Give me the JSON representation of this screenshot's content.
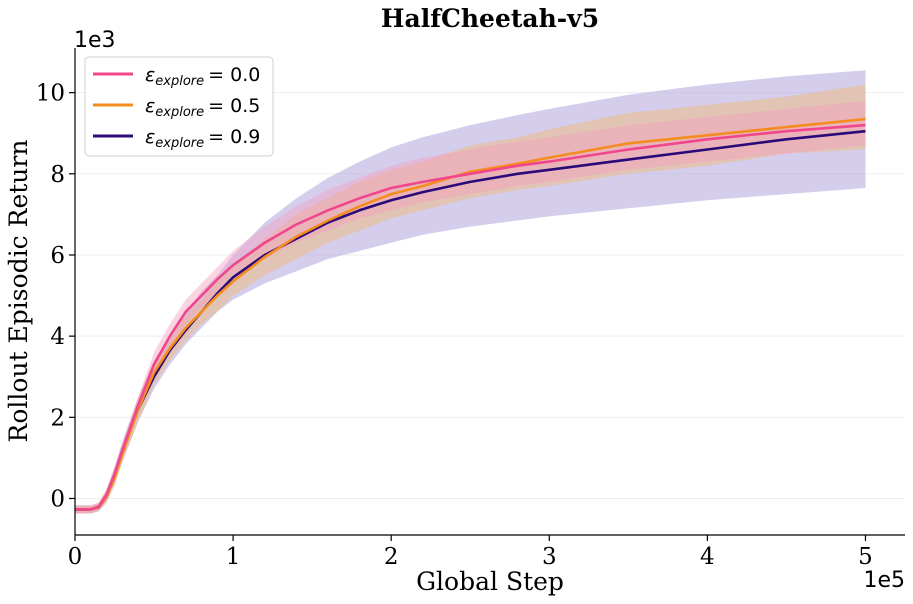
{
  "chart_data": {
    "type": "line",
    "title": "HalfCheetah-v5",
    "xlabel": "Global Step",
    "ylabel": "Rollout Episodic Return",
    "x_offset_label": "1e5",
    "y_offset_label": "1e3",
    "xlim": [
      0,
      5.25
    ],
    "ylim": [
      -0.9,
      11.1
    ],
    "xticks": [
      0,
      1,
      2,
      3,
      4,
      5
    ],
    "yticks": [
      0,
      2,
      4,
      6,
      8,
      10
    ],
    "x_tick_labels": [
      "0",
      "1",
      "2",
      "3",
      "4",
      "5"
    ],
    "y_tick_labels": [
      "0",
      "2",
      "4",
      "6",
      "8",
      "10"
    ],
    "grid": true,
    "legend_position": "top-left",
    "x": [
      0,
      0.1,
      0.15,
      0.2,
      0.25,
      0.3,
      0.4,
      0.5,
      0.6,
      0.7,
      0.8,
      0.9,
      1.0,
      1.2,
      1.4,
      1.6,
      1.8,
      2.0,
      2.2,
      2.5,
      2.8,
      3.0,
      3.5,
      4.0,
      4.5,
      5.0
    ],
    "series": [
      {
        "name": "explore = 0.0",
        "legend_label": "= 0.0",
        "color": "#f0468c",
        "band_color": "#f4a0c0",
        "values": [
          -0.27,
          -0.27,
          -0.2,
          0.1,
          0.6,
          1.2,
          2.3,
          3.3,
          4.0,
          4.6,
          5.0,
          5.4,
          5.75,
          6.3,
          6.75,
          7.1,
          7.4,
          7.65,
          7.8,
          8.0,
          8.2,
          8.3,
          8.6,
          8.85,
          9.05,
          9.2
        ],
        "lower": [
          -0.37,
          -0.37,
          -0.3,
          -0.05,
          0.4,
          1.0,
          2.1,
          3.0,
          3.7,
          4.3,
          4.7,
          5.1,
          5.4,
          5.9,
          6.3,
          6.6,
          6.9,
          7.1,
          7.3,
          7.5,
          7.7,
          7.8,
          8.1,
          8.3,
          8.5,
          8.7
        ],
        "upper": [
          -0.17,
          -0.17,
          -0.1,
          0.25,
          0.8,
          1.4,
          2.5,
          3.6,
          4.3,
          4.9,
          5.3,
          5.7,
          6.1,
          6.7,
          7.2,
          7.6,
          7.9,
          8.2,
          8.4,
          8.6,
          8.8,
          8.9,
          9.2,
          9.4,
          9.6,
          9.8
        ]
      },
      {
        "name": "explore = 0.5",
        "legend_label": "= 0.5",
        "color": "#f58c1e",
        "band_color": "#f4b870",
        "values": [
          -0.27,
          -0.27,
          -0.22,
          0.05,
          0.5,
          1.1,
          2.2,
          3.1,
          3.7,
          4.2,
          4.6,
          5.0,
          5.35,
          5.95,
          6.45,
          6.85,
          7.2,
          7.5,
          7.7,
          8.05,
          8.25,
          8.4,
          8.75,
          8.95,
          9.15,
          9.35
        ],
        "lower": [
          -0.37,
          -0.37,
          -0.3,
          -0.1,
          0.3,
          0.9,
          1.9,
          2.8,
          3.4,
          3.9,
          4.3,
          4.6,
          5.0,
          5.5,
          5.9,
          6.3,
          6.6,
          6.9,
          7.1,
          7.4,
          7.6,
          7.7,
          8.0,
          8.2,
          8.5,
          8.6
        ],
        "upper": [
          -0.17,
          -0.17,
          -0.12,
          0.2,
          0.7,
          1.3,
          2.5,
          3.4,
          4.0,
          4.5,
          4.9,
          5.4,
          5.7,
          6.4,
          7.0,
          7.4,
          7.8,
          8.1,
          8.3,
          8.7,
          8.9,
          9.1,
          9.5,
          9.7,
          9.9,
          10.2
        ]
      },
      {
        "name": "explore = 0.9",
        "legend_label": "= 0.9",
        "color": "#2a0a78",
        "band_color": "#b8aee0",
        "values": [
          -0.27,
          -0.27,
          -0.22,
          0.05,
          0.55,
          1.15,
          2.2,
          3.0,
          3.65,
          4.15,
          4.6,
          5.05,
          5.45,
          6.0,
          6.4,
          6.8,
          7.1,
          7.35,
          7.55,
          7.8,
          8.0,
          8.1,
          8.35,
          8.6,
          8.85,
          9.05
        ],
        "lower": [
          -0.37,
          -0.37,
          -0.32,
          -0.1,
          0.35,
          0.9,
          1.9,
          2.7,
          3.3,
          3.8,
          4.2,
          4.6,
          4.9,
          5.3,
          5.6,
          5.9,
          6.1,
          6.3,
          6.5,
          6.7,
          6.85,
          6.95,
          7.15,
          7.35,
          7.5,
          7.65
        ],
        "upper": [
          -0.17,
          -0.17,
          -0.12,
          0.2,
          0.75,
          1.4,
          2.5,
          3.4,
          4.0,
          4.6,
          5.1,
          5.5,
          6.0,
          6.8,
          7.4,
          7.9,
          8.3,
          8.65,
          8.9,
          9.2,
          9.45,
          9.6,
          9.95,
          10.2,
          10.4,
          10.55
        ]
      }
    ]
  }
}
